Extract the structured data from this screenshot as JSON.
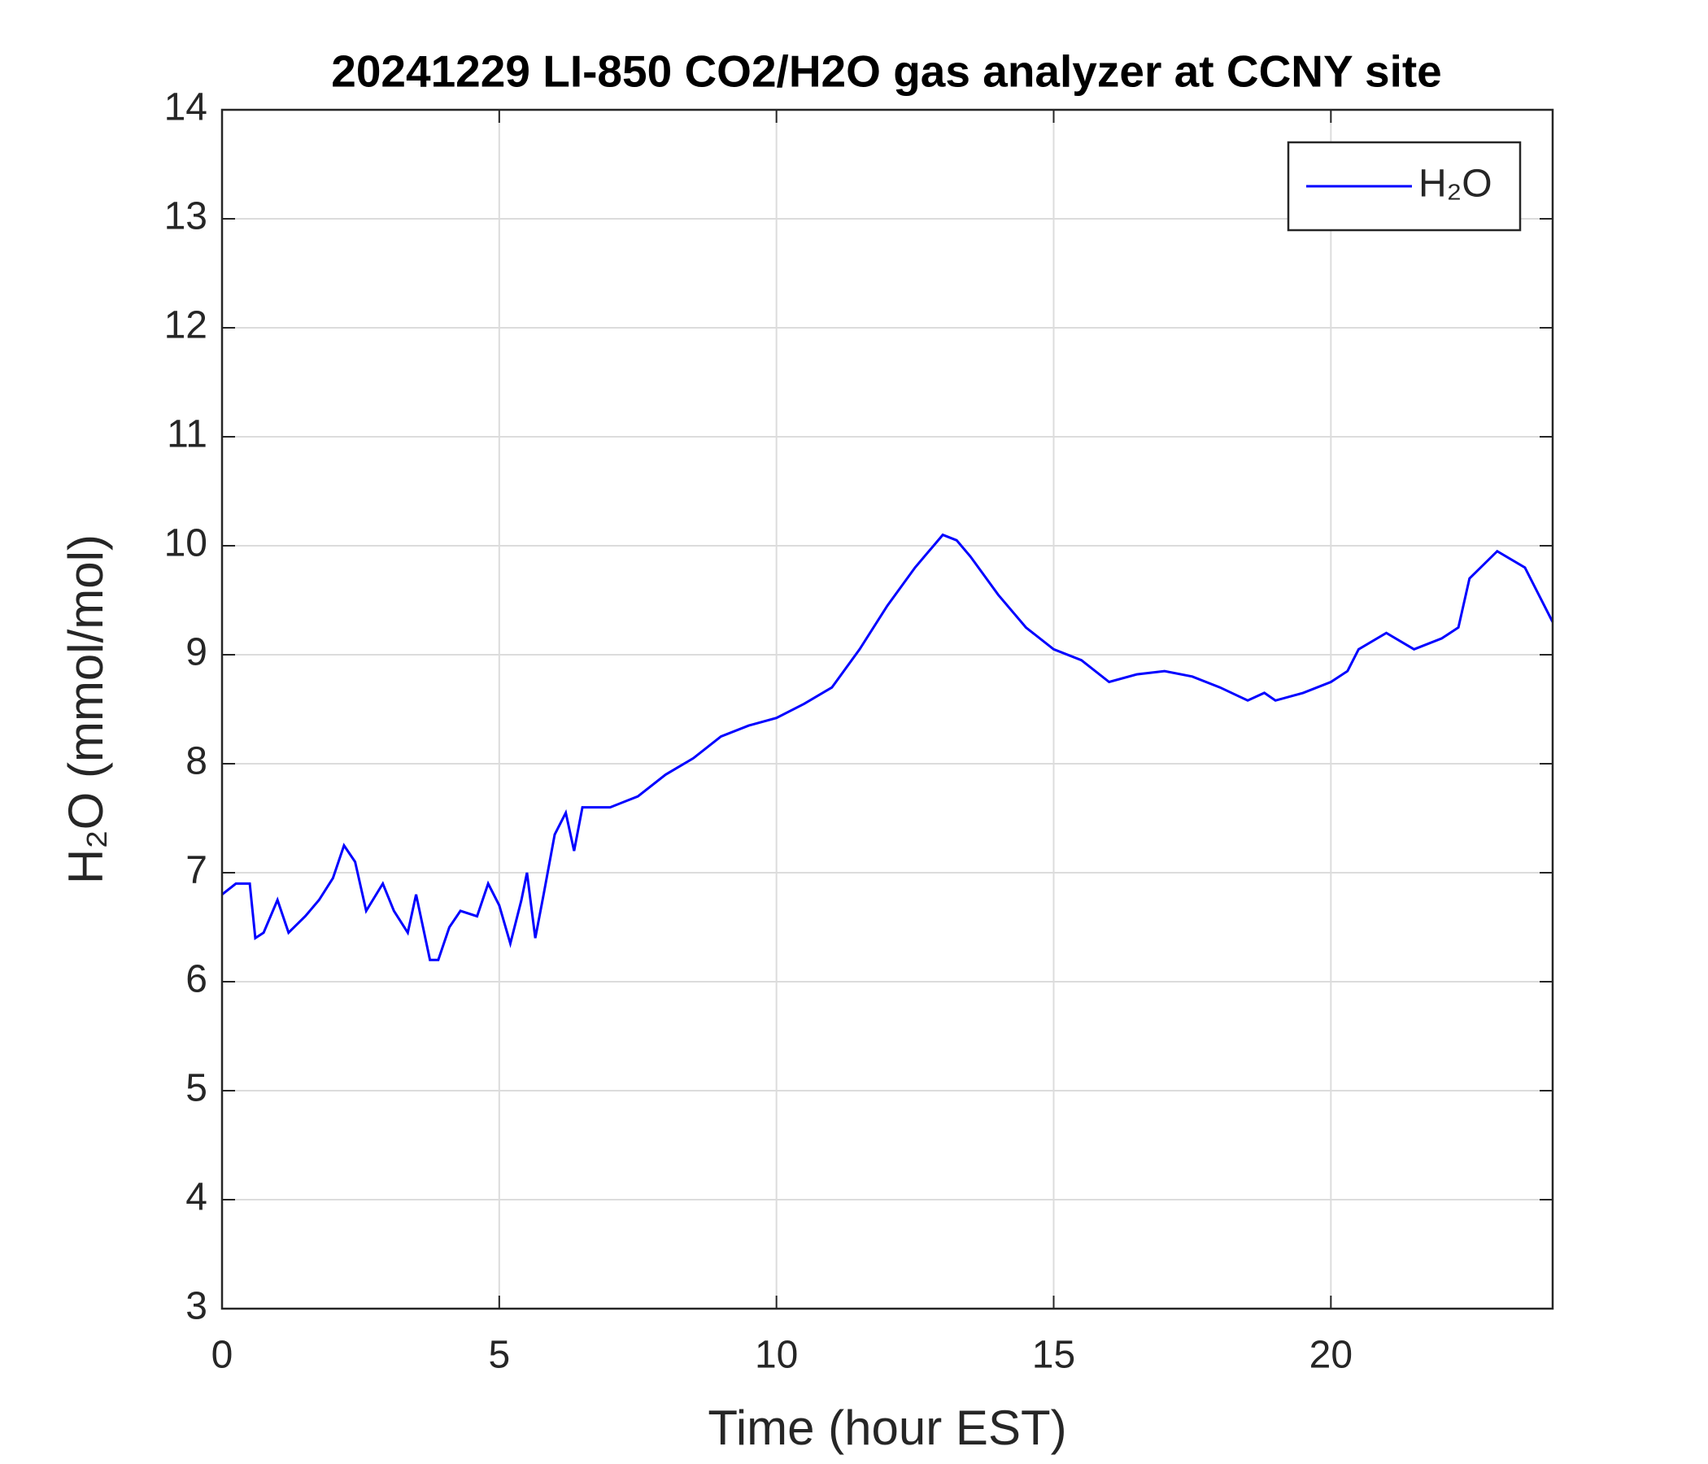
{
  "chart_data": {
    "type": "line",
    "title": "20241229 LI-850 CO2/H2O gas analyzer at CCNY site",
    "x_label": "Time (hour EST)",
    "y_label": "H₂O (mmol/mol)",
    "x": [
      0,
      0.25,
      0.5,
      0.6,
      0.75,
      1.0,
      1.2,
      1.5,
      1.75,
      2.0,
      2.2,
      2.4,
      2.6,
      2.9,
      3.1,
      3.35,
      3.5,
      3.75,
      3.9,
      4.1,
      4.3,
      4.6,
      4.8,
      5.0,
      5.2,
      5.4,
      5.5,
      5.65,
      5.8,
      6.0,
      6.2,
      6.35,
      6.5,
      7.0,
      7.5,
      8.0,
      8.5,
      9.0,
      9.5,
      10.0,
      10.5,
      11.0,
      11.5,
      12.0,
      12.5,
      13.0,
      13.25,
      13.5,
      14.0,
      14.5,
      15.0,
      15.5,
      16.0,
      16.5,
      17.0,
      17.5,
      18.0,
      18.5,
      18.8,
      19.0,
      19.5,
      20.0,
      20.3,
      20.5,
      21.0,
      21.5,
      22.0,
      22.3,
      22.5,
      23.0,
      23.5,
      24.0
    ],
    "series": [
      {
        "name": "H₂O",
        "color": "#0000ff",
        "values": [
          6.8,
          6.9,
          6.9,
          6.4,
          6.45,
          6.75,
          6.45,
          6.6,
          6.75,
          6.95,
          7.25,
          7.1,
          6.65,
          6.9,
          6.65,
          6.45,
          6.8,
          6.2,
          6.2,
          6.5,
          6.65,
          6.6,
          6.9,
          6.7,
          6.35,
          6.75,
          7.0,
          6.4,
          6.8,
          7.35,
          7.55,
          7.2,
          7.6,
          7.6,
          7.7,
          7.9,
          8.05,
          8.25,
          8.35,
          8.42,
          8.55,
          8.7,
          9.05,
          9.45,
          9.8,
          10.1,
          10.05,
          9.9,
          9.55,
          9.25,
          9.05,
          8.95,
          8.75,
          8.82,
          8.85,
          8.8,
          8.7,
          8.58,
          8.65,
          8.58,
          8.65,
          8.75,
          8.85,
          9.05,
          9.2,
          9.05,
          9.15,
          9.25,
          9.7,
          9.95,
          9.8,
          9.3
        ]
      }
    ],
    "xlim": [
      0,
      24
    ],
    "xticks": [
      0,
      5,
      10,
      15,
      20
    ],
    "ylim": [
      3,
      14
    ],
    "yticks": [
      3,
      4,
      5,
      6,
      7,
      8,
      9,
      10,
      11,
      12,
      13,
      14
    ],
    "grid": true,
    "legend": "upper right"
  }
}
